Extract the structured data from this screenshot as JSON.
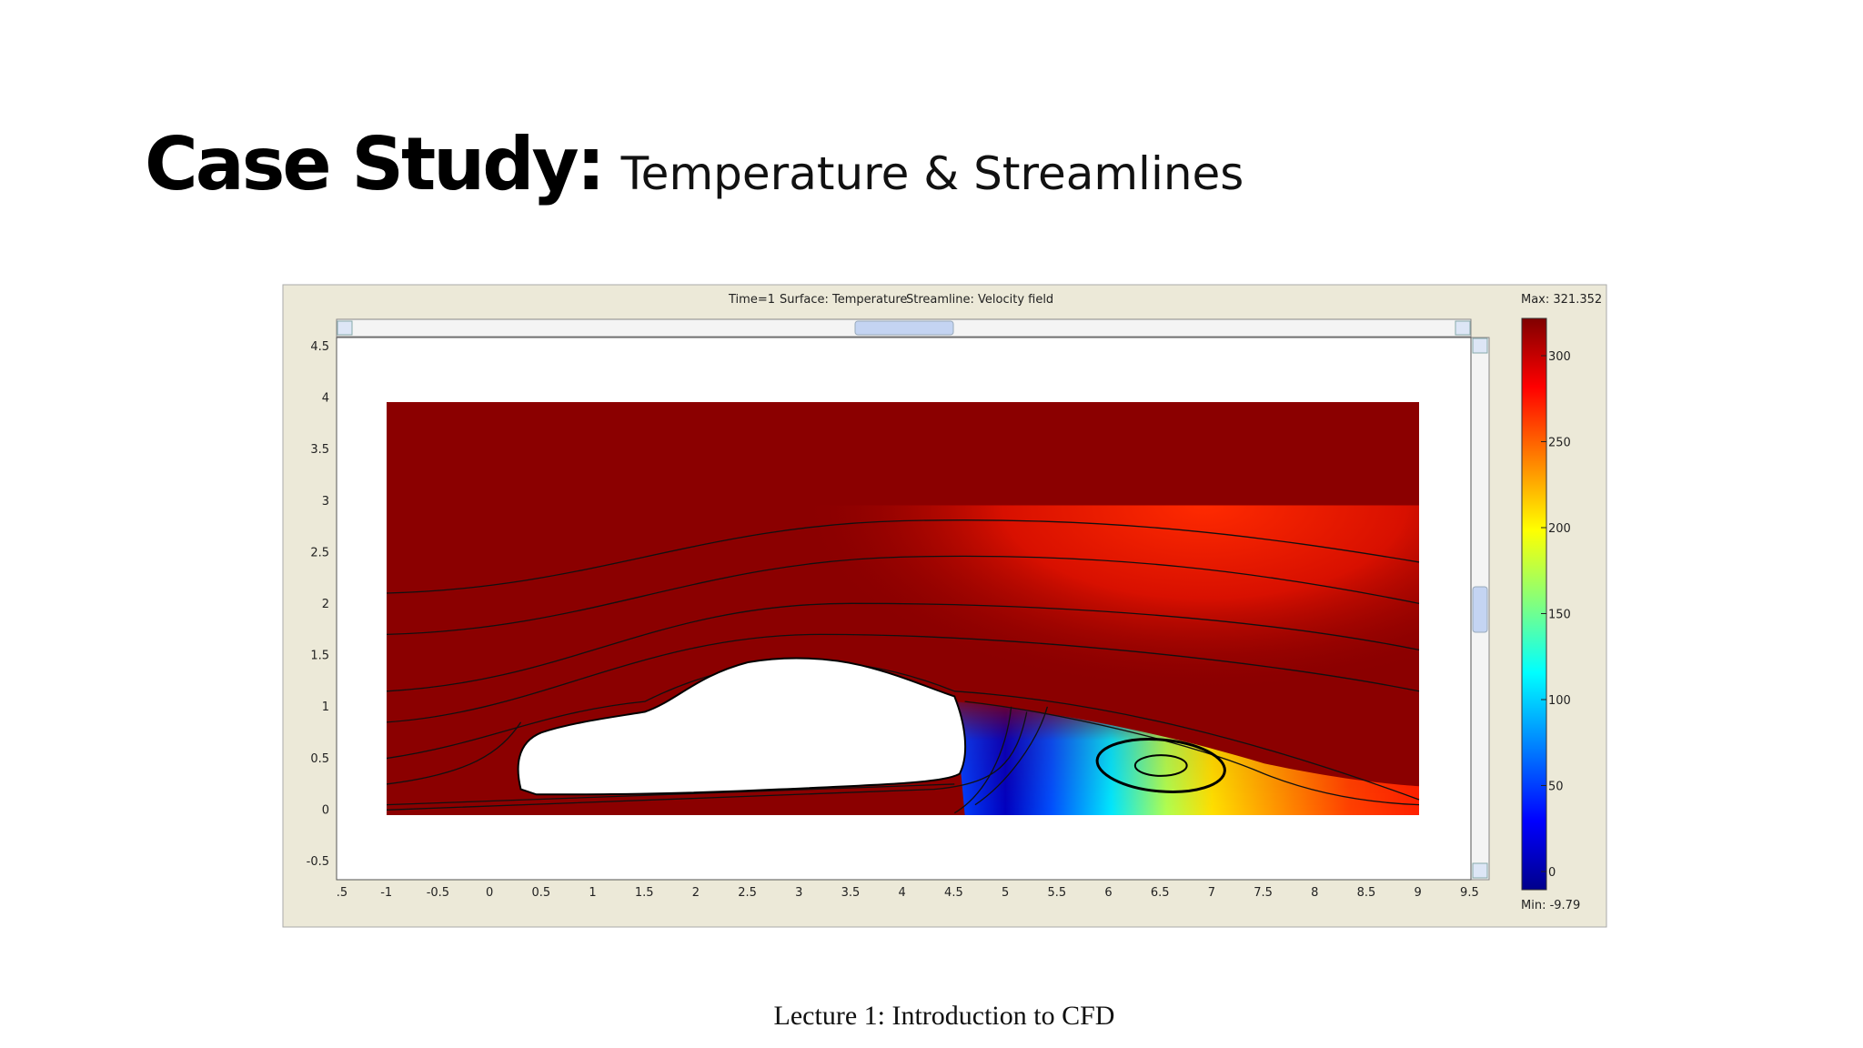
{
  "title": {
    "bold": "Case Study:",
    "regular": "Temperature & Streamlines"
  },
  "figure": {
    "header": [
      "Time=1",
      "Surface: Temperature",
      "Streamline: Velocity field"
    ],
    "max_label": "Max: 321.352",
    "min_label": "Min: -9.79",
    "x_ticks": [
      ".5",
      "-1",
      "-0.5",
      "0",
      "0.5",
      "1",
      "1.5",
      "2",
      "2.5",
      "3",
      "3.5",
      "4",
      "4.5",
      "5",
      "5.5",
      "6",
      "6.5",
      "7",
      "7.5",
      "8",
      "8.5",
      "9",
      "9.5"
    ],
    "y_ticks": [
      "4.5",
      "4",
      "3.5",
      "3",
      "2.5",
      "2",
      "1.5",
      "1",
      "0.5",
      "0",
      "-0.5"
    ],
    "colorbar_ticks": [
      "300",
      "250",
      "200",
      "150",
      "100",
      "50",
      "0"
    ]
  },
  "footer": "Lecture 1: Introduction to CFD"
}
